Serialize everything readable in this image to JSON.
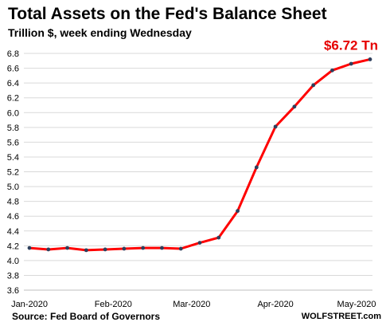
{
  "title": "Total Assets on the Fed's Balance Sheet",
  "subtitle": "Trillion $, week ending Wednesday",
  "source": "Source: Fed Board of Governors",
  "credit": "WOLFSTREET.com",
  "colors": {
    "line": "#ff0000",
    "marker": "#2e3f5c",
    "grid": "#d9d9d9",
    "annotation": "#e60000"
  },
  "chart_data": {
    "type": "line",
    "title": "Total Assets on the Fed's Balance Sheet",
    "subtitle": "Trillion $, week ending Wednesday",
    "xlabel": "",
    "ylabel": "",
    "ylim": [
      3.6,
      6.8
    ],
    "yticks": [
      3.6,
      3.8,
      4.0,
      4.2,
      4.4,
      4.6,
      4.8,
      5.0,
      5.2,
      5.4,
      5.6,
      5.8,
      6.0,
      6.2,
      6.4,
      6.6,
      6.8
    ],
    "xticks": [
      "Jan-2020",
      "Feb-2020",
      "Mar-2020",
      "Apr-2020",
      "May-2020"
    ],
    "grid": "horizontal",
    "legend": "none",
    "x": [
      "2020-01-01",
      "2020-01-08",
      "2020-01-15",
      "2020-01-22",
      "2020-01-29",
      "2020-02-05",
      "2020-02-12",
      "2020-02-19",
      "2020-02-26",
      "2020-03-04",
      "2020-03-11",
      "2020-03-18",
      "2020-03-25",
      "2020-04-01",
      "2020-04-08",
      "2020-04-15",
      "2020-04-22",
      "2020-04-29",
      "2020-05-06"
    ],
    "series": [
      {
        "values": [
          4.17,
          4.15,
          4.17,
          4.14,
          4.15,
          4.16,
          4.17,
          4.17,
          4.16,
          4.24,
          4.31,
          4.67,
          5.26,
          5.81,
          6.08,
          6.37,
          6.57,
          6.66,
          6.72
        ]
      }
    ],
    "annotation": {
      "text": "$6.72 Tn",
      "point_index": 18
    }
  }
}
